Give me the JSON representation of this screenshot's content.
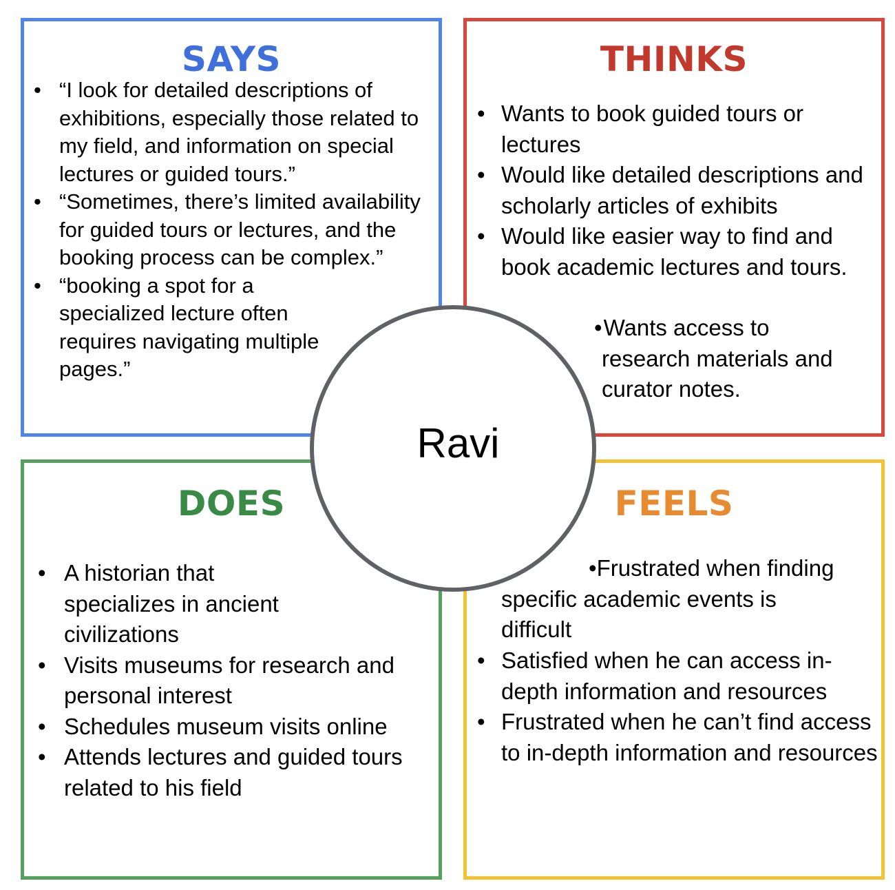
{
  "persona": "Ravi",
  "colors": {
    "says_border": "#5086ec",
    "thinks_border": "#d9483b",
    "does_border": "#55a15c",
    "feels_border": "#f2c230",
    "circle_border": "#5f6165"
  },
  "says": {
    "title": "SAYS",
    "items": [
      "“I look for detailed descriptions of exhibitions, especially those related to my field, and information on special lectures or guided tours.”",
      "“Sometimes, there’s limited availability for guided tours or lectures, and the booking process can be complex.”",
      "“booking a spot for a specialized lecture often requires navigating multiple pages.”"
    ]
  },
  "thinks": {
    "title": "THINKS",
    "items": [
      "Wants to book guided tours or lectures",
      "Would like detailed descriptions and scholarly articles of exhibits",
      "Would like easier way to find and book academic lectures and tours."
    ],
    "extra_line1": "Wants access to",
    "extra_line2": "research materials and",
    "extra_line3": "curator notes."
  },
  "does": {
    "title": "DOES",
    "items": [
      "A historian that specializes in ancient civilizations",
      "Visits museums for research and personal interest",
      "Schedules museum visits online",
      "Attends lectures and guided tours related to his field"
    ]
  },
  "feels": {
    "title": "FEELS",
    "first_line": "Frustrated when finding",
    "first_rest": "specific academic events is difficult",
    "items": [
      "Satisfied when he can access in-depth information and resources",
      "Frustrated when he can’t find access to in-depth information and resources"
    ]
  }
}
